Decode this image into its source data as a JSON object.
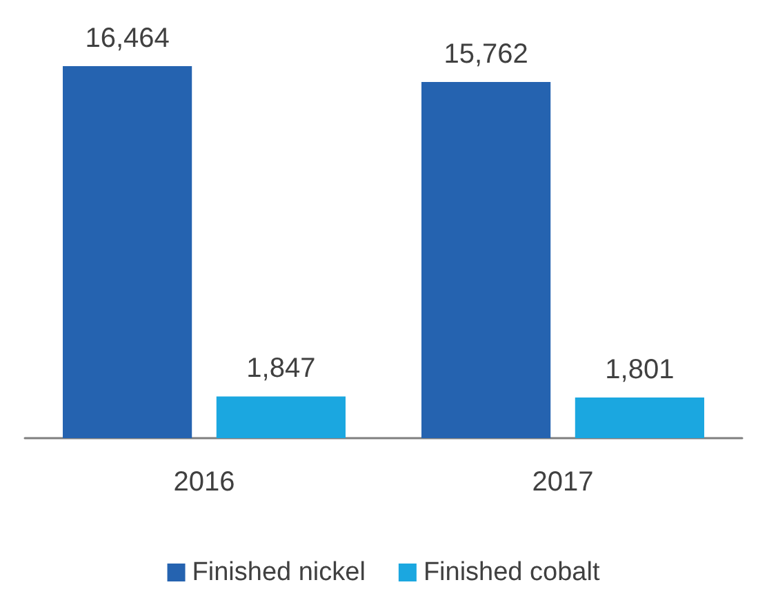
{
  "chart_data": {
    "type": "bar",
    "categories": [
      "2016",
      "2017"
    ],
    "series": [
      {
        "name": "Finished nickel",
        "color": "#2563b0",
        "values": [
          16464,
          15762
        ],
        "value_labels": [
          "16,464",
          "15,762"
        ]
      },
      {
        "name": "Finished cobalt",
        "color": "#1ba7e0",
        "values": [
          1847,
          1801
        ],
        "value_labels": [
          "1,847",
          "1,801"
        ]
      }
    ],
    "legend": "bottom"
  }
}
